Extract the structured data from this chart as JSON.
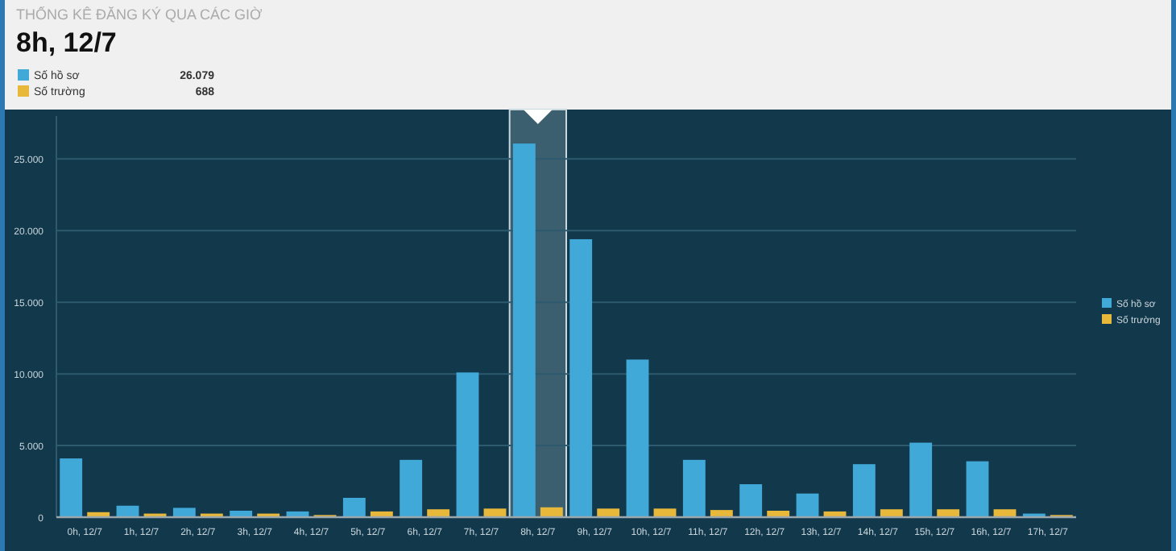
{
  "chart_data": {
    "type": "bar",
    "title": "THỐNG KÊ ĐĂNG KÝ QUA CÁC GIỜ",
    "subtitle": "8h, 12/7",
    "categories": [
      "0h, 12/7",
      "1h, 12/7",
      "2h, 12/7",
      "3h, 12/7",
      "4h, 12/7",
      "5h, 12/7",
      "6h, 12/7",
      "7h, 12/7",
      "8h, 12/7",
      "9h, 12/7",
      "10h, 12/7",
      "11h, 12/7",
      "12h, 12/7",
      "13h, 12/7",
      "14h, 12/7",
      "15h, 12/7",
      "16h, 12/7",
      "17h, 12/7"
    ],
    "series": [
      {
        "name": "Số hồ sơ",
        "color": "#41a9d8",
        "values": [
          4100,
          800,
          650,
          450,
          400,
          1350,
          4000,
          10100,
          26079,
          19400,
          11000,
          4000,
          2300,
          1650,
          3700,
          5200,
          3900,
          250
        ]
      },
      {
        "name": "Số trường",
        "color": "#e8b83a",
        "values": [
          350,
          250,
          250,
          250,
          150,
          400,
          550,
          600,
          688,
          600,
          600,
          500,
          450,
          400,
          550,
          550,
          550,
          150
        ]
      }
    ],
    "annotations": [
      "26.079",
      "688"
    ],
    "bands": [
      {
        "axis": "x",
        "from": "8h, 12/7",
        "to": "8h, 12/7",
        "color": "#5c7f8c"
      }
    ],
    "ylim": [
      0,
      28000
    ],
    "yticks": [
      0,
      {
        "value": 5000,
        "label": "5.000"
      },
      {
        "value": 10000,
        "label": "10.000"
      },
      {
        "value": 15000,
        "label": "15.000"
      },
      {
        "value": 20000,
        "label": "20.000"
      },
      {
        "value": 25000,
        "label": "25.000"
      }
    ],
    "grid": "y",
    "legend": "right"
  }
}
